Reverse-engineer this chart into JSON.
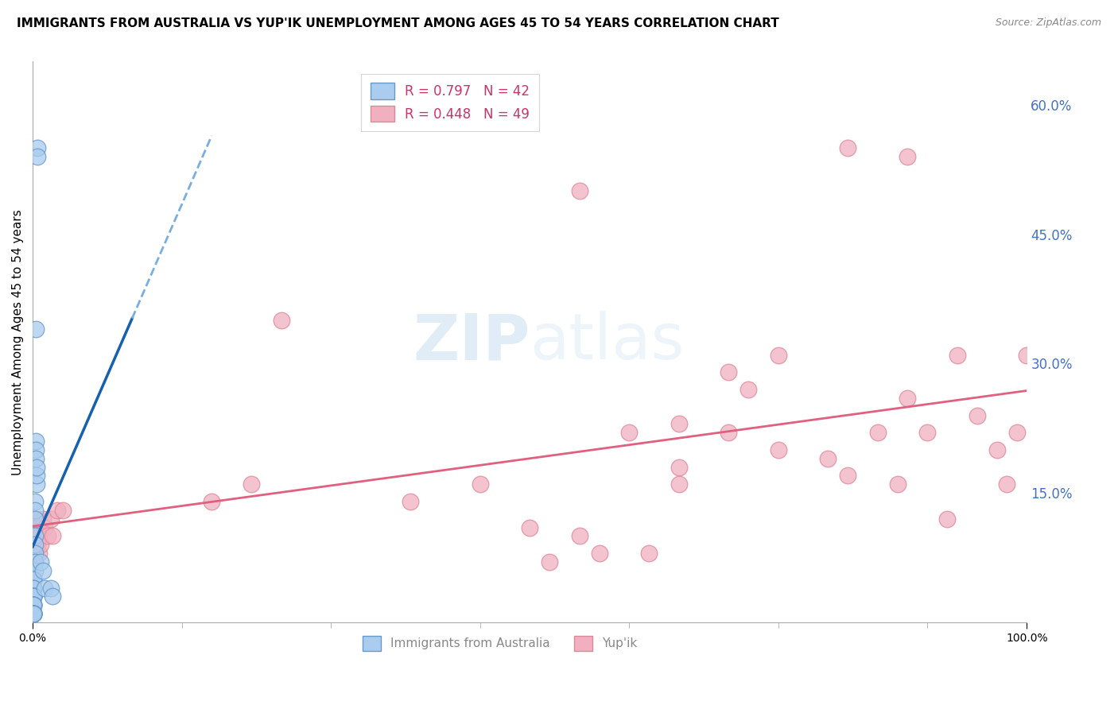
{
  "title": "IMMIGRANTS FROM AUSTRALIA VS YUP'IK UNEMPLOYMENT AMONG AGES 45 TO 54 YEARS CORRELATION CHART",
  "source": "Source: ZipAtlas.com",
  "ylabel": "Unemployment Among Ages 45 to 54 years",
  "xlim": [
    0,
    1.0
  ],
  "ylim": [
    0,
    0.65
  ],
  "ytick_positions": [
    0.15,
    0.3,
    0.45,
    0.6
  ],
  "ytick_labels": [
    "15.0%",
    "30.0%",
    "45.0%",
    "60.0%"
  ],
  "legend_label_blue": "R = 0.797   N = 42",
  "legend_label_pink": "R = 0.448   N = 49",
  "watermark_zip": "ZIP",
  "watermark_atlas": "atlas",
  "blue_scatter_x": [
    0.005,
    0.005,
    0.003,
    0.003,
    0.003,
    0.003,
    0.004,
    0.004,
    0.004,
    0.002,
    0.002,
    0.002,
    0.002,
    0.002,
    0.002,
    0.002,
    0.002,
    0.001,
    0.001,
    0.001,
    0.001,
    0.001,
    0.001,
    0.001,
    0.001,
    0.001,
    0.001,
    0.001,
    0.001,
    0.001,
    0.001,
    0.001,
    0.001,
    0.001,
    0.001,
    0.001,
    0.001,
    0.008,
    0.01,
    0.012,
    0.018,
    0.02
  ],
  "blue_scatter_y": [
    0.55,
    0.54,
    0.34,
    0.21,
    0.2,
    0.19,
    0.16,
    0.17,
    0.18,
    0.14,
    0.13,
    0.12,
    0.1,
    0.09,
    0.08,
    0.07,
    0.06,
    0.05,
    0.05,
    0.04,
    0.04,
    0.03,
    0.03,
    0.03,
    0.03,
    0.03,
    0.02,
    0.02,
    0.02,
    0.02,
    0.01,
    0.01,
    0.01,
    0.01,
    0.01,
    0.01,
    0.01,
    0.07,
    0.06,
    0.04,
    0.04,
    0.03
  ],
  "pink_scatter_x": [
    0.002,
    0.003,
    0.004,
    0.005,
    0.006,
    0.007,
    0.008,
    0.01,
    0.012,
    0.015,
    0.018,
    0.02,
    0.025,
    0.03,
    0.18,
    0.22,
    0.25,
    0.38,
    0.45,
    0.5,
    0.52,
    0.55,
    0.57,
    0.6,
    0.62,
    0.65,
    0.65,
    0.7,
    0.72,
    0.75,
    0.8,
    0.82,
    0.85,
    0.87,
    0.88,
    0.9,
    0.92,
    0.93,
    0.95,
    0.97,
    0.98,
    0.99,
    1.0,
    0.82,
    0.55,
    0.7,
    0.75,
    0.88,
    0.65
  ],
  "pink_scatter_y": [
    0.1,
    0.12,
    0.11,
    0.09,
    0.08,
    0.1,
    0.09,
    0.12,
    0.11,
    0.1,
    0.12,
    0.1,
    0.13,
    0.13,
    0.14,
    0.16,
    0.35,
    0.14,
    0.16,
    0.11,
    0.07,
    0.1,
    0.08,
    0.22,
    0.08,
    0.16,
    0.23,
    0.22,
    0.27,
    0.2,
    0.19,
    0.17,
    0.22,
    0.16,
    0.26,
    0.22,
    0.12,
    0.31,
    0.24,
    0.2,
    0.16,
    0.22,
    0.31,
    0.55,
    0.5,
    0.29,
    0.31,
    0.54,
    0.18
  ],
  "blue_line_color": "#1560b0",
  "blue_dashed_color": "#7aaee0",
  "pink_line_color": "#e06080",
  "scatter_blue_facecolor": "#aaccee",
  "scatter_blue_edgecolor": "#6699cc",
  "scatter_pink_facecolor": "#f0b0c0",
  "scatter_pink_edgecolor": "#dd8899",
  "background_color": "#ffffff",
  "grid_color": "#cccccc",
  "right_tick_color": "#4472c4",
  "title_fontsize": 11,
  "axis_label_fontsize": 11,
  "tick_label_fontsize": 10,
  "legend_text_color": "#cc3366",
  "source_color": "#888888"
}
